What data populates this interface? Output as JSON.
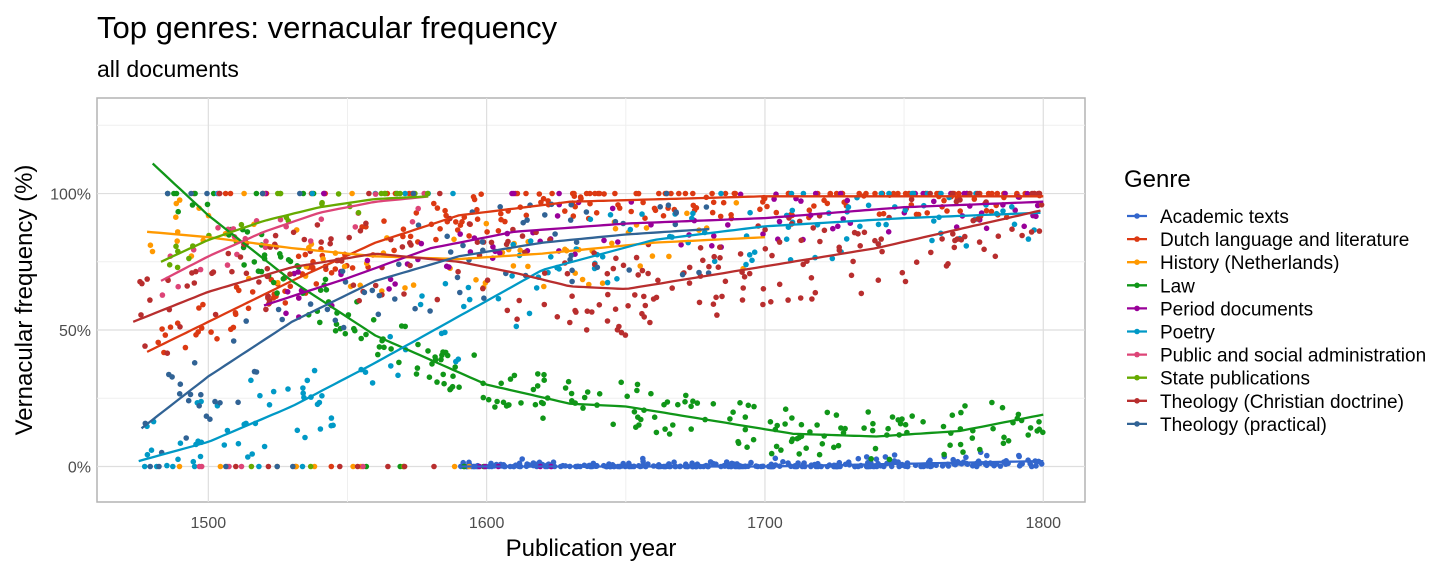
{
  "chart_data": {
    "type": "scatter",
    "title": "Top genres: vernacular frequency",
    "subtitle": "all documents",
    "xlabel": "Publication year",
    "ylabel": "Vernacular frequency (%)",
    "xlim": [
      1460,
      1815
    ],
    "ylim": [
      -13,
      135
    ],
    "x_ticks": [
      1500,
      1600,
      1700,
      1800
    ],
    "x_tick_labels": [
      "1500",
      "1600",
      "1700",
      "1800"
    ],
    "y_ticks": [
      0,
      50,
      100
    ],
    "y_tick_labels": [
      "0%",
      "50%",
      "100%"
    ],
    "grid": true,
    "legend_title": "Genre",
    "legend_position": "right",
    "series": [
      {
        "name": "Academic texts",
        "color": "#3366CC",
        "trend": [
          [
            1590,
            0
          ],
          [
            1650,
            0
          ],
          [
            1700,
            0
          ],
          [
            1750,
            1
          ],
          [
            1800,
            2
          ]
        ]
      },
      {
        "name": "Dutch language and literature",
        "color": "#DC3912",
        "trend": [
          [
            1478,
            42
          ],
          [
            1500,
            53
          ],
          [
            1530,
            68
          ],
          [
            1560,
            82
          ],
          [
            1590,
            92
          ],
          [
            1630,
            97
          ],
          [
            1700,
            99
          ],
          [
            1800,
            99
          ]
        ]
      },
      {
        "name": "History (Netherlands)",
        "color": "#FF9900",
        "trend": [
          [
            1478,
            86
          ],
          [
            1500,
            84
          ],
          [
            1530,
            80
          ],
          [
            1560,
            77
          ],
          [
            1590,
            76
          ],
          [
            1620,
            78
          ],
          [
            1660,
            82
          ],
          [
            1700,
            84
          ]
        ]
      },
      {
        "name": "Law",
        "color": "#109618",
        "trend": [
          [
            1480,
            111
          ],
          [
            1500,
            92
          ],
          [
            1530,
            68
          ],
          [
            1560,
            48
          ],
          [
            1600,
            30
          ],
          [
            1630,
            23
          ],
          [
            1650,
            22
          ],
          [
            1680,
            17
          ],
          [
            1710,
            12
          ],
          [
            1740,
            11
          ],
          [
            1770,
            13
          ],
          [
            1800,
            19
          ]
        ]
      },
      {
        "name": "Period documents",
        "color": "#990099",
        "trend": [
          [
            1520,
            59
          ],
          [
            1550,
            69
          ],
          [
            1580,
            80
          ],
          [
            1610,
            86
          ],
          [
            1650,
            89
          ],
          [
            1700,
            91
          ],
          [
            1750,
            95
          ],
          [
            1800,
            97
          ]
        ]
      },
      {
        "name": "Poetry",
        "color": "#0099C6",
        "trend": [
          [
            1475,
            2
          ],
          [
            1500,
            9
          ],
          [
            1530,
            22
          ],
          [
            1560,
            38
          ],
          [
            1590,
            55
          ],
          [
            1620,
            72
          ],
          [
            1660,
            83
          ],
          [
            1700,
            88
          ],
          [
            1750,
            91
          ],
          [
            1800,
            93
          ]
        ]
      },
      {
        "name": "Public and social administration",
        "color": "#DD4477",
        "trend": [
          [
            1483,
            68
          ],
          [
            1500,
            77
          ],
          [
            1520,
            86
          ],
          [
            1540,
            93
          ],
          [
            1560,
            97
          ],
          [
            1580,
            99
          ]
        ]
      },
      {
        "name": "State publications",
        "color": "#66AA00",
        "trend": [
          [
            1483,
            75
          ],
          [
            1500,
            83
          ],
          [
            1520,
            90
          ],
          [
            1540,
            95
          ],
          [
            1560,
            98
          ],
          [
            1580,
            99
          ]
        ]
      },
      {
        "name": "Theology (Christian doctrine)",
        "color": "#B82E2E",
        "trend": [
          [
            1473,
            53
          ],
          [
            1500,
            64
          ],
          [
            1530,
            73
          ],
          [
            1560,
            78
          ],
          [
            1590,
            75
          ],
          [
            1610,
            71
          ],
          [
            1630,
            66
          ],
          [
            1650,
            65
          ],
          [
            1680,
            70
          ],
          [
            1710,
            75
          ],
          [
            1740,
            80
          ],
          [
            1770,
            87
          ],
          [
            1800,
            94
          ]
        ]
      },
      {
        "name": "Theology (practical)",
        "color": "#316395",
        "trend": [
          [
            1476,
            14
          ],
          [
            1500,
            33
          ],
          [
            1530,
            53
          ],
          [
            1560,
            68
          ],
          [
            1590,
            77
          ],
          [
            1620,
            82
          ],
          [
            1650,
            85
          ],
          [
            1680,
            87
          ]
        ]
      }
    ]
  }
}
